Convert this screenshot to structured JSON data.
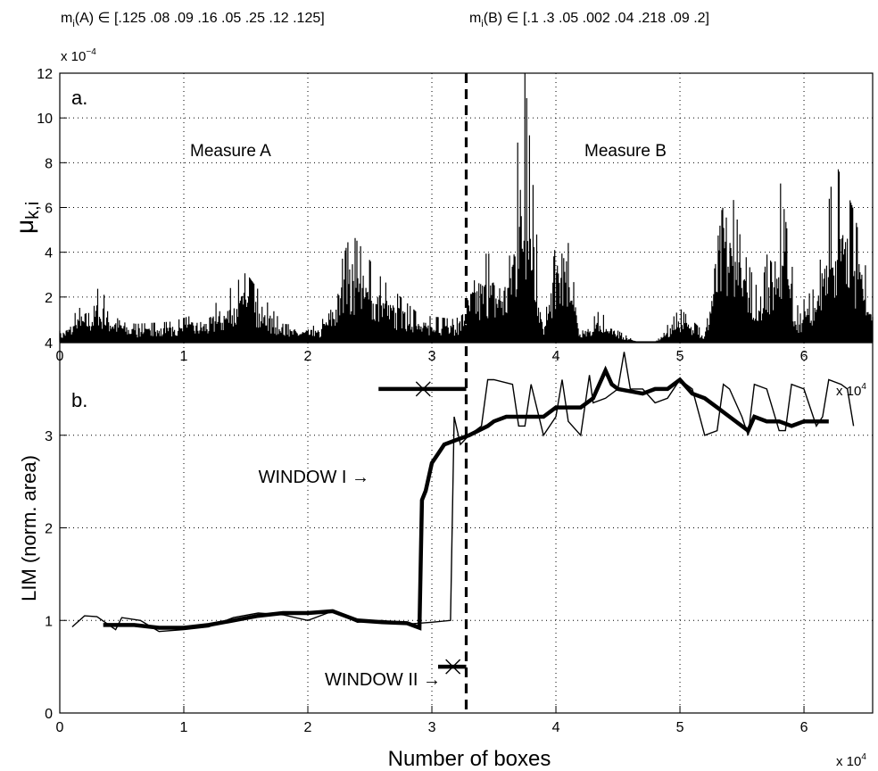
{
  "header": {
    "left_text": "m",
    "left_sub": "i",
    "left_rest": "(A) ∈ [.125 .08 .09 .16 .05 .25 .12 .125]",
    "right_text": "m",
    "right_sub": "i",
    "right_rest": "(B) ∈ [.1 .3 .05 .002 .04 .218 .09 .2]"
  },
  "chart_data": [
    {
      "type": "line",
      "panel_label": "a.",
      "ylabel_main": "μ",
      "ylabel_sub": "k,i",
      "y_exponent_prefix": "x 10",
      "y_exponent_power": "−4",
      "x_exponent_prefix": "x 10",
      "x_exponent_power": "4",
      "xlim": [
        0,
        65536
      ],
      "ylim": [
        0,
        0.0012
      ],
      "x_ticks": [
        0,
        10000,
        20000,
        30000,
        40000,
        50000,
        60000
      ],
      "x_tick_labels": [
        "0",
        "1",
        "2",
        "3",
        "4",
        "5",
        "6"
      ],
      "y_ticks": [
        0.0002,
        0.0004,
        0.0006,
        0.0008,
        0.001,
        0.0012
      ],
      "y_tick_labels": [
        "2",
        "4",
        "6",
        "8",
        "10",
        "12"
      ],
      "grid": true,
      "annotations": [
        "Measure A",
        "Measure B"
      ],
      "divider_x": 32768,
      "series": [
        {
          "x": [
            0,
            3000,
            6000,
            9000,
            12000,
            15000,
            18000,
            21000,
            23500,
            26000,
            29000,
            32000,
            33500,
            36000,
            37500,
            39000,
            40500,
            42000,
            43500,
            45000,
            46500,
            48000,
            50000,
            52000,
            53500,
            55000,
            56500,
            58000,
            59500,
            61000,
            62500,
            64000,
            65536
          ],
          "y": [
            5e-05,
            0.00024,
            8e-05,
            9e-05,
            0.00014,
            0.00031,
            8e-05,
            7e-05,
            0.00049,
            0.00028,
            0.00012,
            0.0001,
            0.00039,
            0.0004,
            0.0012,
            6e-05,
            0.00064,
            4e-05,
            0.00014,
            5e-05,
            0.0,
            0.0,
            0.00015,
            4e-05,
            0.00088,
            0.00043,
            0.0002,
            0.00075,
            0.00016,
            0.00025,
            0.00081,
            0.00059,
            0.00019
          ]
        }
      ]
    },
    {
      "type": "line",
      "panel_label": "b.",
      "ylabel": "LIM (norm. area)",
      "xlabel": "Number of boxes",
      "x_exponent_prefix": "x 10",
      "x_exponent_power": "4",
      "xlim": [
        0,
        65536
      ],
      "ylim": [
        0,
        4
      ],
      "x_ticks": [
        0,
        10000,
        20000,
        30000,
        40000,
        50000,
        60000
      ],
      "x_tick_labels": [
        "0",
        "1",
        "2",
        "3",
        "4",
        "5",
        "6"
      ],
      "y_ticks": [
        0,
        1,
        2,
        3,
        4
      ],
      "y_tick_labels": [
        "0",
        "1",
        "2",
        "3",
        "4"
      ],
      "grid": true,
      "divider_x": 32768,
      "window_one": {
        "label": "WINDOW I →",
        "x_start": 25700,
        "x_end": 32768,
        "x_marker": 29300,
        "y": 3.5
      },
      "window_two": {
        "label": "WINDOW II →",
        "x_start": 30500,
        "x_end": 32768,
        "x_marker": 31700,
        "y": 0.5
      },
      "series": [
        {
          "style": "thin",
          "x": [
            1000,
            2000,
            3000,
            4500,
            5000,
            6500,
            8000,
            10000,
            12000,
            14000,
            16000,
            18000,
            20000,
            22000,
            24000,
            26000,
            28000,
            30000,
            31500,
            31800,
            32300,
            33000,
            34000,
            34500,
            35000,
            36500,
            37000,
            37500,
            38000,
            39000,
            40000,
            40500,
            41000,
            42000,
            42700,
            43000,
            44000,
            45000,
            45500,
            46000,
            47000,
            48000,
            49000,
            50000,
            51000,
            52000,
            53000,
            53500,
            54000,
            55000,
            55500,
            56000,
            57000,
            58000,
            58500,
            59000,
            60000,
            61000,
            61500,
            62000,
            63000,
            63500,
            64000
          ],
          "y": [
            0.93,
            1.05,
            1.04,
            0.9,
            1.03,
            1.0,
            0.88,
            0.9,
            0.93,
            1.03,
            1.08,
            1.06,
            1.0,
            1.1,
            0.98,
            1.0,
            0.96,
            0.98,
            1.0,
            3.2,
            2.9,
            3.0,
            3.1,
            3.6,
            3.6,
            3.55,
            3.1,
            3.1,
            3.55,
            3.0,
            3.2,
            3.6,
            3.15,
            3.0,
            3.65,
            3.35,
            3.4,
            3.5,
            3.9,
            3.5,
            3.5,
            3.35,
            3.4,
            3.6,
            3.5,
            3.0,
            3.05,
            3.55,
            3.5,
            3.2,
            3.0,
            3.55,
            3.5,
            3.05,
            3.05,
            3.55,
            3.5,
            3.1,
            3.2,
            3.6,
            3.55,
            3.5,
            3.1
          ]
        },
        {
          "style": "thick",
          "x": [
            3500,
            6000,
            8000,
            10000,
            12000,
            14000,
            16000,
            18000,
            20000,
            22000,
            24000,
            26000,
            28000,
            29000,
            29200,
            29500,
            30000,
            30500,
            31000,
            32000,
            33000,
            34500,
            35000,
            36000,
            38000,
            39000,
            40000,
            41000,
            42000,
            43000,
            44000,
            44500,
            45000,
            47000,
            48000,
            49000,
            50000,
            51000,
            52000,
            53000,
            54000,
            55000,
            55500,
            56000,
            57000,
            58000,
            59000,
            60000,
            61000,
            62000
          ],
          "y": [
            0.95,
            0.95,
            0.92,
            0.92,
            0.95,
            1.0,
            1.05,
            1.08,
            1.08,
            1.1,
            1.0,
            0.98,
            0.97,
            0.92,
            2.3,
            2.4,
            2.7,
            2.8,
            2.9,
            2.95,
            3.0,
            3.1,
            3.15,
            3.2,
            3.2,
            3.2,
            3.3,
            3.3,
            3.3,
            3.4,
            3.7,
            3.55,
            3.5,
            3.45,
            3.5,
            3.5,
            3.6,
            3.45,
            3.4,
            3.3,
            3.2,
            3.1,
            3.05,
            3.2,
            3.15,
            3.15,
            3.1,
            3.15,
            3.15,
            3.15
          ]
        }
      ]
    }
  ]
}
